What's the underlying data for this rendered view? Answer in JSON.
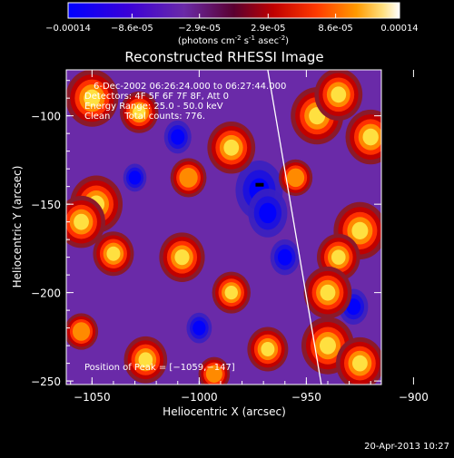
{
  "colorbar": {
    "ticks": [
      "-0.00014",
      "-8.6e-05",
      "-2.9e-05",
      "2.9e-05",
      "8.6e-05",
      "0.00014"
    ],
    "tick_values": [
      -0.00014,
      -8.6e-05,
      -2.9e-05,
      2.9e-05,
      8.6e-05,
      0.00014
    ],
    "range": [
      -0.00014,
      0.00014
    ],
    "unit_prefix": "(photons cm",
    "unit_exp1": "-2",
    "unit_mid": " s",
    "unit_exp2": "-1",
    "unit_mid2": " asec",
    "unit_exp3": "-2",
    "unit_suffix": ")",
    "colors": [
      "#0000ff",
      "#5000b0",
      "#6a2aa8",
      "#9b2020",
      "#ff2000",
      "#ff8c00",
      "#ffd040",
      "#ffffff"
    ]
  },
  "chart_data": {
    "type": "heatmap",
    "title": "Reconstructed RHESSI Image",
    "xlabel": "Heliocentric X (arcsec)",
    "ylabel": "Heliocentric Y (arcsec)",
    "xlim": [
      -1062,
      -915
    ],
    "ylim": [
      -252,
      -74
    ],
    "xticks": [
      -1050,
      -1000,
      -950,
      -900
    ],
    "yticks": [
      -100,
      -150,
      -200,
      -250
    ],
    "xtick_labels": [
      "−1050",
      "−1000",
      "−950",
      "−900"
    ],
    "ytick_labels": [
      "−100",
      "−150",
      "−200",
      "−250"
    ],
    "info_lines": [
      "6-Dec-2002 06:26:24.000 to 06:27:44.000",
      "Detectors: 4F 5F 6F 7F 8F, Att 0",
      "Energy Range: 25.0 - 50.0 keV",
      "Clean     Total counts: 776."
    ],
    "peak_label": "Position of Peak = [−1059,−147]",
    "peak": {
      "x": -1059,
      "y": -147
    },
    "limb_line": {
      "x_top": -968,
      "y_top": -74,
      "x_bottom": -943,
      "y_bottom": -252
    },
    "hot_blobs": [
      {
        "x": -1050,
        "y": -90,
        "v": 1.0
      },
      {
        "x": -1028,
        "y": -98,
        "v": 0.7
      },
      {
        "x": -985,
        "y": -118,
        "v": 0.9
      },
      {
        "x": -1005,
        "y": -135,
        "v": 0.65
      },
      {
        "x": -945,
        "y": -100,
        "v": 1.0
      },
      {
        "x": -935,
        "y": -88,
        "v": 0.9
      },
      {
        "x": -920,
        "y": -112,
        "v": 0.95
      },
      {
        "x": -955,
        "y": -135,
        "v": 0.6
      },
      {
        "x": -925,
        "y": -165,
        "v": 1.0
      },
      {
        "x": -935,
        "y": -180,
        "v": 0.8
      },
      {
        "x": -1048,
        "y": -150,
        "v": 1.0
      },
      {
        "x": -1055,
        "y": -160,
        "v": 0.9
      },
      {
        "x": -1040,
        "y": -178,
        "v": 0.75
      },
      {
        "x": -1008,
        "y": -180,
        "v": 0.85
      },
      {
        "x": -985,
        "y": -200,
        "v": 0.7
      },
      {
        "x": -940,
        "y": -200,
        "v": 0.9
      },
      {
        "x": -940,
        "y": -230,
        "v": 1.0
      },
      {
        "x": -925,
        "y": -240,
        "v": 0.9
      },
      {
        "x": -1055,
        "y": -222,
        "v": 0.6
      },
      {
        "x": -1025,
        "y": -238,
        "v": 0.8
      },
      {
        "x": -968,
        "y": -232,
        "v": 0.75
      },
      {
        "x": -993,
        "y": -246,
        "v": 0.55
      }
    ],
    "cold_blobs": [
      {
        "x": -972,
        "y": -142,
        "v": 1.0
      },
      {
        "x": -968,
        "y": -155,
        "v": 0.8
      },
      {
        "x": -1010,
        "y": -112,
        "v": 0.5
      },
      {
        "x": -960,
        "y": -180,
        "v": 0.55
      },
      {
        "x": -928,
        "y": -208,
        "v": 0.55
      },
      {
        "x": -1030,
        "y": -135,
        "v": 0.4
      },
      {
        "x": -1000,
        "y": -220,
        "v": 0.45
      }
    ]
  },
  "footer": {
    "timestamp": "20-Apr-2013 10:27"
  }
}
